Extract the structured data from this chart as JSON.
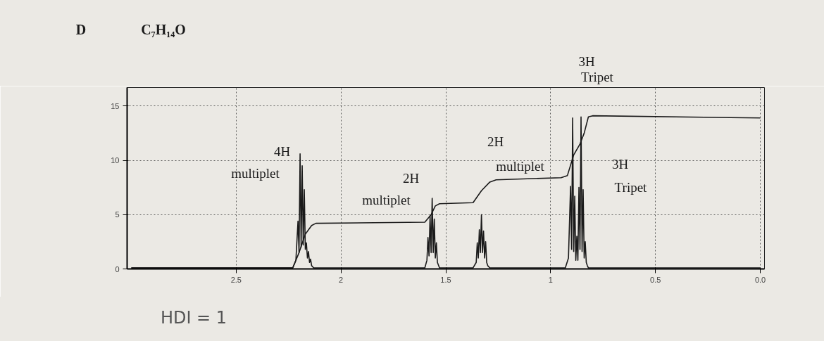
{
  "chart_data": {
    "type": "line",
    "title": "D",
    "subtitle": "C₇H₁₄O",
    "xlim": [
      3.02,
      -0.02
    ],
    "ylim": [
      0,
      16.7
    ],
    "xticks": [
      2.5,
      2.0,
      1.5,
      1.0,
      0.5,
      {
        "value": 0.0,
        "label": "0.0"
      }
    ],
    "yticks": [
      0,
      5,
      10,
      15
    ],
    "grid": true,
    "marker": "none",
    "line_style": "solid",
    "series": [
      {
        "color": "#1a1a1a",
        "x": [
          3.0,
          2.23,
          2.215,
          2.205,
          2.2,
          2.195,
          2.19,
          2.185,
          2.18,
          2.175,
          2.17,
          2.165,
          2.16,
          2.155,
          2.15,
          2.145,
          2.14,
          2.13,
          2.12,
          1.6,
          1.59,
          1.585,
          1.58,
          1.575,
          1.57,
          1.565,
          1.56,
          1.555,
          1.55,
          1.545,
          1.54,
          1.53,
          1.52,
          1.37,
          1.355,
          1.35,
          1.345,
          1.34,
          1.335,
          1.33,
          1.325,
          1.32,
          1.315,
          1.31,
          1.305,
          1.3,
          1.29,
          1.28,
          0.93,
          0.915,
          0.905,
          0.9,
          0.895,
          0.89,
          0.885,
          0.88,
          0.875,
          0.87,
          0.865,
          0.86,
          0.855,
          0.85,
          0.845,
          0.84,
          0.835,
          0.83,
          0.825,
          0.82,
          0.815,
          0.81,
          0.8,
          0.79,
          0.0
        ],
        "values": [
          0.1,
          0.1,
          0.8,
          4.4,
          1.5,
          10.6,
          2.0,
          9.5,
          2.2,
          7.3,
          1.8,
          2.4,
          1.0,
          1.6,
          0.6,
          0.9,
          0.3,
          0.1,
          0.1,
          0.1,
          0.8,
          2.9,
          1.2,
          4.9,
          1.5,
          6.5,
          1.5,
          4.6,
          1.0,
          2.4,
          0.6,
          0.1,
          0.1,
          0.1,
          0.6,
          2.4,
          1.0,
          3.6,
          1.5,
          5.0,
          1.5,
          3.5,
          1.0,
          2.5,
          0.6,
          0.3,
          0.1,
          0.1,
          0.1,
          1.0,
          7.6,
          1.8,
          13.9,
          1.6,
          6.7,
          0.8,
          3.0,
          0.8,
          7.5,
          1.8,
          14.0,
          1.6,
          7.3,
          1.0,
          2.5,
          0.6,
          0.3,
          0.1,
          0.1,
          0.1,
          0.1,
          0.1,
          0.1
        ]
      },
      {
        "color": "#1a1a1a",
        "x": [
          3.0,
          2.23,
          2.2,
          2.17,
          2.14,
          2.12,
          1.6,
          1.57,
          1.55,
          1.53,
          1.37,
          1.33,
          1.29,
          1.26,
          0.95,
          0.92,
          0.89,
          0.86,
          0.84,
          0.82,
          0.8,
          0.0
        ],
        "values": [
          0.1,
          0.1,
          1.5,
          3.2,
          4.0,
          4.2,
          4.3,
          5.0,
          5.8,
          6.0,
          6.1,
          7.2,
          8.0,
          8.2,
          8.4,
          8.6,
          10.5,
          11.5,
          12.5,
          14.0,
          14.1,
          13.9
        ]
      }
    ],
    "annotations": [
      "4H",
      "multiplet",
      "2H",
      "multiplet",
      "2H",
      "multiplet",
      "3H",
      "Tripet",
      "3H",
      "Tripet",
      "HDI = 1"
    ]
  }
}
